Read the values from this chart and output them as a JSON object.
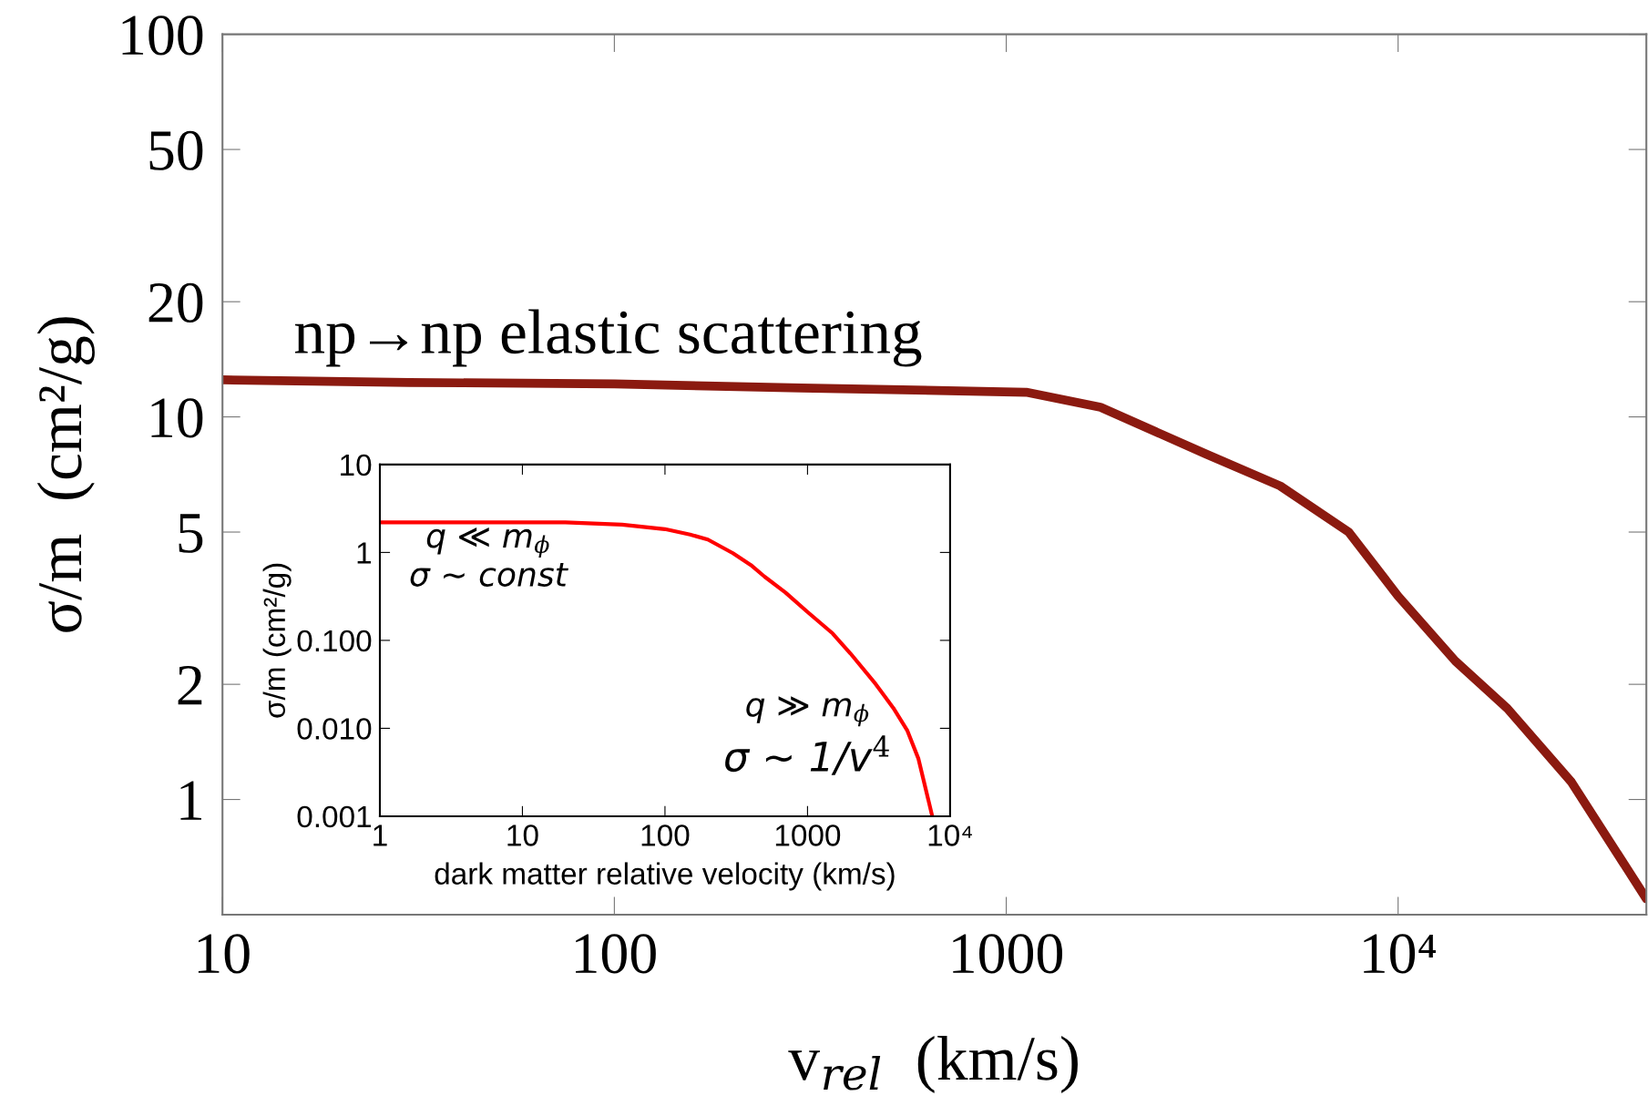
{
  "chart_data": [
    {
      "type": "line",
      "xlabel": "v$_{rel}$  (km/s)",
      "ylabel": "σ/m  (cm²/g)",
      "log": "xy",
      "grid": false,
      "marker": "none",
      "line_style": "solid",
      "x": [
        10,
        30,
        100,
        300,
        1125,
        1740,
        3230,
        5000,
        7480,
        10000,
        14000,
        19000,
        27700,
        43000
      ],
      "series": [
        {
          "color": "#8b1a10",
          "values": [
            12.5,
            12.3,
            12.2,
            11.9,
            11.6,
            10.6,
            8.0,
            6.6,
            5.0,
            3.4,
            2.3,
            1.73,
            1.11,
            0.55
          ]
        }
      ],
      "xlim": [
        10,
        43000
      ],
      "ylim": [
        0.5,
        100
      ],
      "xticks": [
        10,
        100,
        1000,
        {
          "value": 10000,
          "label": "10⁴"
        }
      ],
      "yticks": [
        1,
        2,
        5,
        10,
        20,
        50,
        100
      ],
      "annotations": [
        "np→np elastic scattering"
      ]
    },
    {
      "type": "line",
      "xlabel": "dark matter relative velocity (km/s)",
      "ylabel": "σ/m (cm²/g)",
      "log": "xy",
      "grid": false,
      "marker": "none",
      "line_style": "solid",
      "x": [
        1,
        10,
        20,
        50,
        100,
        150,
        200,
        300,
        400,
        500,
        700,
        1000,
        1500,
        2000,
        3000,
        4000,
        5000,
        6000,
        7500
      ],
      "series": [
        {
          "color": "#ff0000",
          "values": [
            2.2,
            2.2,
            2.2,
            2.07,
            1.84,
            1.6,
            1.4,
            0.98,
            0.72,
            0.53,
            0.35,
            0.21,
            0.12,
            0.071,
            0.032,
            0.017,
            0.0095,
            0.0045,
            0.001
          ]
        }
      ],
      "xlim": [
        1,
        10000
      ],
      "ylim": [
        0.001,
        10
      ],
      "xticks": [
        1,
        10,
        100,
        1000,
        {
          "value": 10000,
          "label": "10⁴"
        }
      ],
      "yticks": [
        {
          "value": 0.001,
          "label": "0.001"
        },
        {
          "value": 0.01,
          "label": "0.010"
        },
        {
          "value": 0.1,
          "label": "0.100"
        },
        1,
        10
      ],
      "annotations": [
        "q ≪ m$_{ϕ}$",
        "σ ∼ const",
        "q ≫ m$_{ϕ}$",
        "σ ∼ 1/v$^{4}$"
      ]
    }
  ]
}
